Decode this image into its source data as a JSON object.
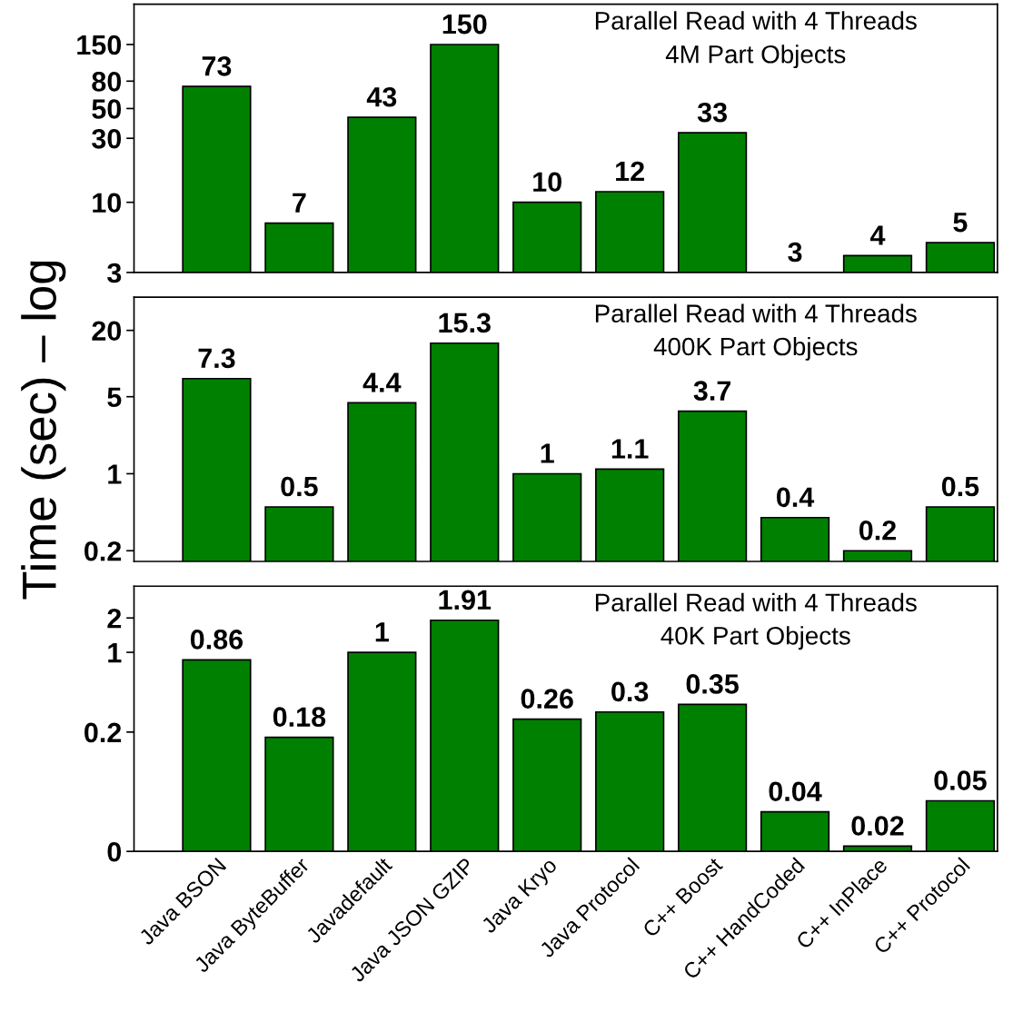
{
  "chart_data": [
    {
      "type": "bar",
      "values": [
        73,
        7,
        43,
        150,
        10,
        12,
        33,
        3,
        4,
        5
      ],
      "color": "#008000",
      "log": true,
      "ylim": [
        3,
        300
      ],
      "yticks": [
        3,
        10,
        30,
        50,
        80,
        150
      ],
      "data_labels": true,
      "grid": false,
      "legend": false,
      "tick_labels": "y",
      "annotations": [
        "Parallel Read with 4 Threads",
        "4M Part Objects"
      ]
    },
    {
      "type": "bar",
      "values": [
        7.3,
        0.5,
        4.4,
        15.3,
        1,
        1.1,
        3.7,
        0.4,
        0.2,
        0.5
      ],
      "color": "#008000",
      "log": true,
      "ylim": [
        0.16,
        40
      ],
      "yticks": [
        0.2,
        1,
        5,
        20
      ],
      "data_labels": true,
      "grid": false,
      "legend": false,
      "tick_labels": "y",
      "ylabel": "Time (sec) – log",
      "annotations": [
        "Parallel Read with 4 Threads",
        "400K Part Objects"
      ]
    },
    {
      "type": "bar",
      "categories": [
        "Java BSON",
        "Java ByteBuffer",
        "Javadefault",
        "Java JSON GZIP",
        "Java Kryo",
        "Java Protocol",
        "C++ Boost",
        "C++ HandCoded",
        "C++ InPlace",
        "C++ Protocol"
      ],
      "values": [
        0.86,
        0.18,
        1,
        1.91,
        0.26,
        0.3,
        0.35,
        0.04,
        0.02,
        0.05
      ],
      "color": "#008000",
      "log": true,
      "ylim": [
        0.018,
        3.8
      ],
      "yticks": [
        {
          "value": 0.018,
          "label": "0"
        },
        0.2,
        1,
        2
      ],
      "data_labels": true,
      "grid": false,
      "legend": false,
      "annotations": [
        "Parallel Read with 4 Threads",
        "40K Part Objects"
      ]
    }
  ]
}
